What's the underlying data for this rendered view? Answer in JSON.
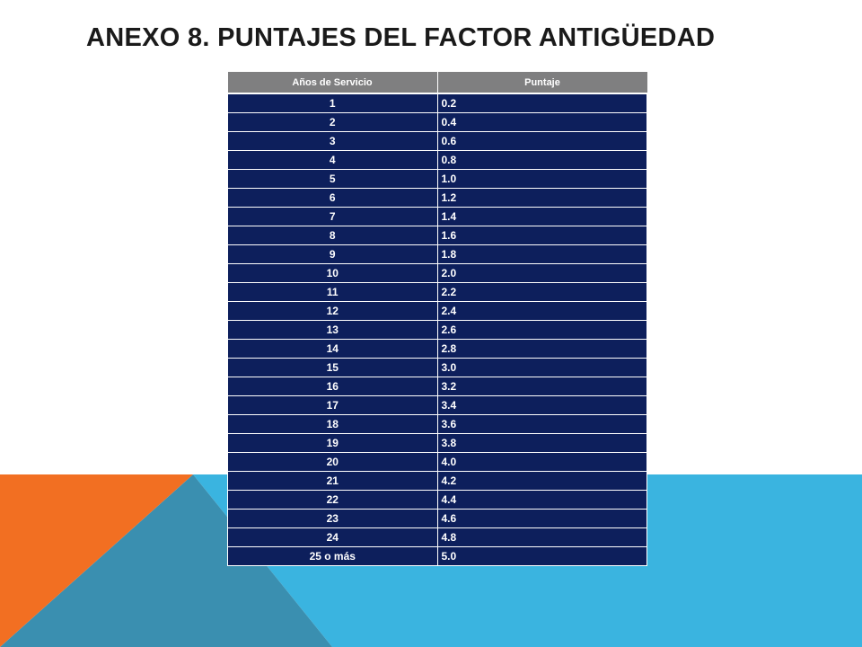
{
  "slide": {
    "title": "ANEXO 8. PUNTAJES DEL FACTOR ANTIGÜEDAD"
  },
  "colors": {
    "header_bg": "#7f7f80",
    "row_bg": "#0d1f5c",
    "orange_shape": "#f26f22",
    "blue_shape": "#3ab4e0",
    "dark_teal_shape": "#3a8fb0"
  },
  "table": {
    "headers": [
      "Años de Servicio",
      "Puntaje"
    ],
    "rows": [
      [
        "1",
        "0.2"
      ],
      [
        "2",
        "0.4"
      ],
      [
        "3",
        "0.6"
      ],
      [
        "4",
        "0.8"
      ],
      [
        "5",
        "1.0"
      ],
      [
        "6",
        "1.2"
      ],
      [
        "7",
        "1.4"
      ],
      [
        "8",
        "1.6"
      ],
      [
        "9",
        "1.8"
      ],
      [
        "10",
        "2.0"
      ],
      [
        "11",
        "2.2"
      ],
      [
        "12",
        "2.4"
      ],
      [
        "13",
        "2.6"
      ],
      [
        "14",
        "2.8"
      ],
      [
        "15",
        "3.0"
      ],
      [
        "16",
        "3.2"
      ],
      [
        "17",
        "3.4"
      ],
      [
        "18",
        "3.6"
      ],
      [
        "19",
        "3.8"
      ],
      [
        "20",
        "4.0"
      ],
      [
        "21",
        "4.2"
      ],
      [
        "22",
        "4.4"
      ],
      [
        "23",
        "4.6"
      ],
      [
        "24",
        "4.8"
      ],
      [
        "25 o más",
        "5.0"
      ]
    ]
  }
}
